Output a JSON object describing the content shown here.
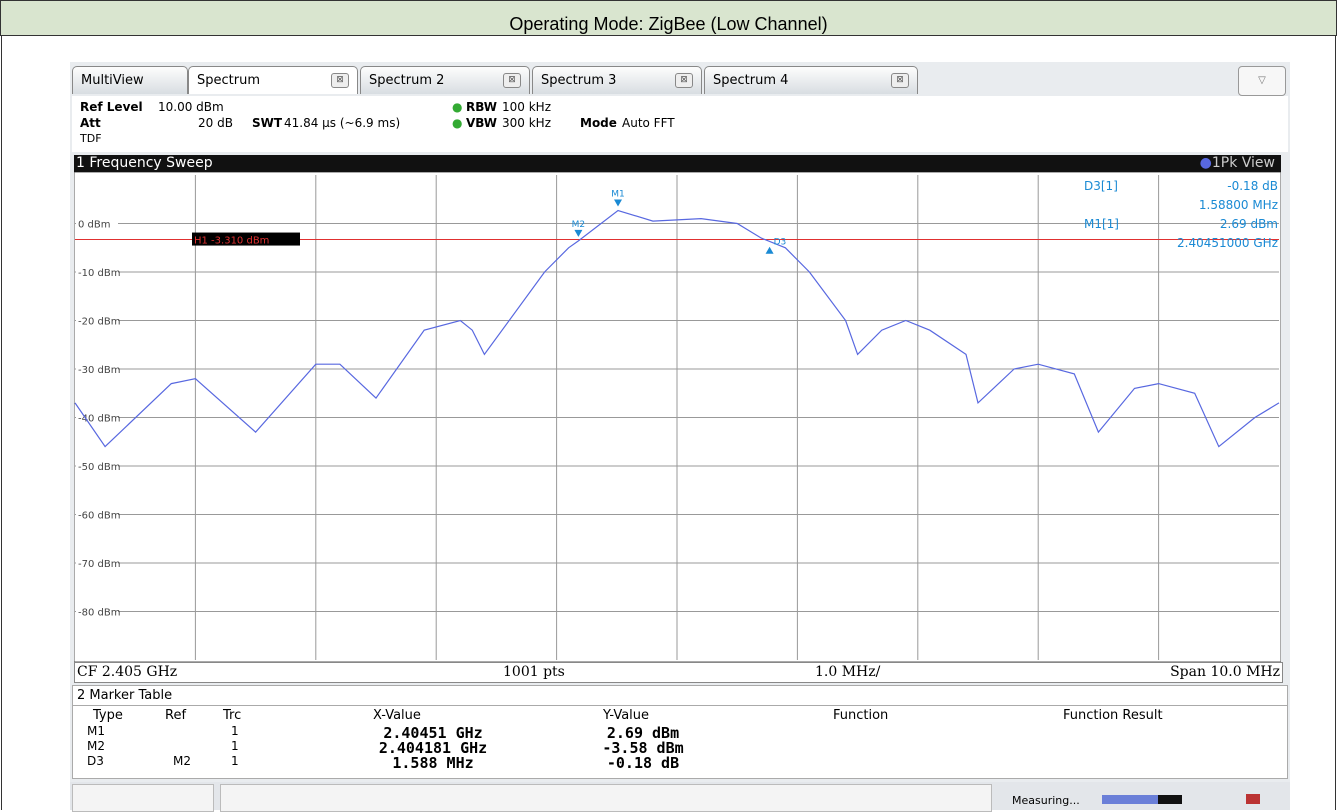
{
  "header": {
    "title": "Operating Mode: ZigBee (Low Channel)"
  },
  "tabs": [
    "MultiView",
    "Spectrum",
    "Spectrum 2",
    "Spectrum 3",
    "Spectrum 4"
  ],
  "settings": {
    "ref_level_label": "Ref Level",
    "ref_level": "10.00 dBm",
    "att_label": "Att",
    "att": "20 dB",
    "swt_label": "SWT",
    "swt": "41.84 µs (~6.9 ms)",
    "rbw_label": "RBW",
    "rbw": "100 kHz",
    "vbw_label": "VBW",
    "vbw": "300 kHz",
    "mode_label": "Mode",
    "mode": "Auto FFT",
    "tdf": "TDF"
  },
  "sweep_title": "1 Frequency Sweep",
  "chart_data": {
    "type": "line",
    "x": [
      2.4,
      2.40025,
      2.4008,
      2.401,
      2.4015,
      2.402,
      2.4022,
      2.4025,
      2.4029,
      2.4032,
      2.4033,
      2.4034,
      2.4039,
      2.4041,
      2.404181,
      2.40451,
      2.4048,
      2.4052,
      2.4055,
      2.4057,
      2.4059,
      2.4061,
      2.4064,
      2.4065,
      2.4067,
      2.4069,
      2.4071,
      2.4074,
      2.4075,
      2.4078,
      2.408,
      2.4083,
      2.4085,
      2.4088,
      2.409,
      2.4093,
      2.4095,
      2.4098,
      2.41
    ],
    "series": [
      {
        "name": "1Pk View",
        "color": "#5868e0",
        "values": [
          -37,
          -46,
          -33,
          -32,
          -43,
          -29,
          -29,
          -36,
          -22,
          -20,
          -22,
          -27,
          -10,
          -5,
          -3.58,
          2.69,
          0.5,
          1,
          0,
          -3,
          -5,
          -10,
          -20,
          -27,
          -22,
          -20,
          -22,
          -27,
          -37,
          -30,
          -29,
          -31,
          -43,
          -34,
          -33,
          -35,
          -46,
          -40,
          -37
        ]
      }
    ],
    "xlim": [
      2.4,
      2.41
    ],
    "ylim": [
      -90,
      10
    ],
    "yticks": [
      {
        "value": 0,
        "label": "0 dBm"
      },
      {
        "value": -10,
        "label": "-10 dBm"
      },
      {
        "value": -20,
        "label": "-20 dBm"
      },
      {
        "value": -30,
        "label": "-30 dBm"
      },
      {
        "value": -40,
        "label": "-40 dBm"
      },
      {
        "value": -50,
        "label": "-50 dBm"
      },
      {
        "value": -60,
        "label": "-60 dBm"
      },
      {
        "value": -70,
        "label": "-70 dBm"
      },
      {
        "value": -80,
        "label": "-80 dBm"
      }
    ],
    "xgrid_divisions": 10,
    "grid": true,
    "hline": {
      "value": -3.31,
      "label": "H1 -3.310 dBm",
      "color": "#e03030"
    },
    "marker_color": "#1a8ad4",
    "markers": [
      {
        "name": "M1",
        "x": 2.40451,
        "y": 2.69
      },
      {
        "name": "M2",
        "x": 2.404181,
        "y": -3.58
      },
      {
        "name": "D3",
        "ref": "M2",
        "dx_mhz": 1.588,
        "dy": -0.18
      }
    ]
  },
  "readout": [
    [
      "D3[1]",
      "-0.18 dB"
    ],
    [
      "1.58800 MHz"
    ],
    [
      "M1[1]",
      "2.69 dBm"
    ],
    [
      "2.40451000 GHz"
    ]
  ],
  "footer": {
    "cf": "CF 2.405 GHz",
    "pts": "1001 pts",
    "div": "1.0 MHz/",
    "span": "Span 10.0 MHz"
  },
  "marker_table": {
    "title": "2 Marker Table",
    "headers": [
      "Type",
      "Ref",
      "Trc",
      "X-Value",
      "Y-Value",
      "Function",
      "Function Result"
    ],
    "rows": [
      {
        "type": "M1",
        "trc": "1",
        "x": "2.40451 GHz",
        "y": "2.69 dBm"
      },
      {
        "type": "M2",
        "trc": "1",
        "x": "2.404181 GHz",
        "y": "-3.58 dBm"
      },
      {
        "type": "D3",
        "ref": "M2",
        "trc": "1",
        "x": "1.588 MHz",
        "y": "-0.18 dB"
      }
    ]
  },
  "status": "Measuring..."
}
